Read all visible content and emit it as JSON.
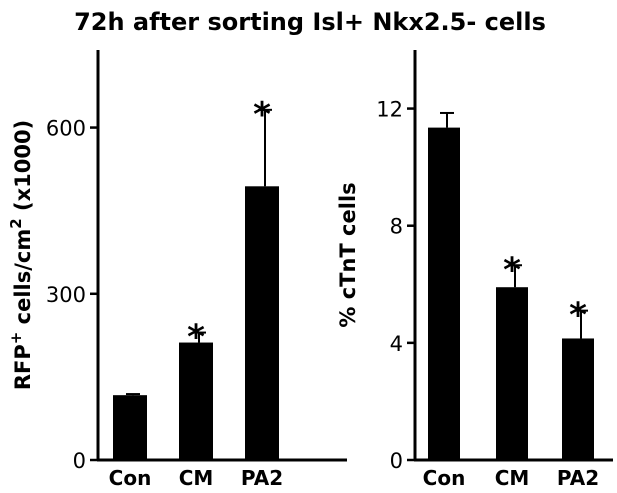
{
  "title": "72h after sorting Isl+ Nkx2.5- cells",
  "chart_data": [
    {
      "type": "bar",
      "categories": [
        "Con",
        "CM",
        "PA2"
      ],
      "values": [
        117,
        212,
        494
      ],
      "errors": [
        2,
        18,
        138
      ],
      "significance": [
        "",
        "*",
        "*"
      ],
      "ylabel": {
        "main": "RFP",
        "sup": "+",
        "mid": " cells/cm",
        "sup2": "2",
        "rest": " (x1000)"
      },
      "yticks": [
        0,
        300,
        600
      ],
      "ylim": [
        0,
        740
      ]
    },
    {
      "type": "bar",
      "categories": [
        "Con",
        "CM",
        "PA2"
      ],
      "values": [
        11.35,
        5.9,
        4.15
      ],
      "errors": [
        0.5,
        0.75,
        0.95
      ],
      "significance": [
        "",
        "*",
        "*"
      ],
      "ylabel": {
        "main": "% cTnT cells"
      },
      "yticks": [
        0,
        4,
        8,
        12
      ],
      "ylim": [
        0,
        14
      ]
    }
  ]
}
